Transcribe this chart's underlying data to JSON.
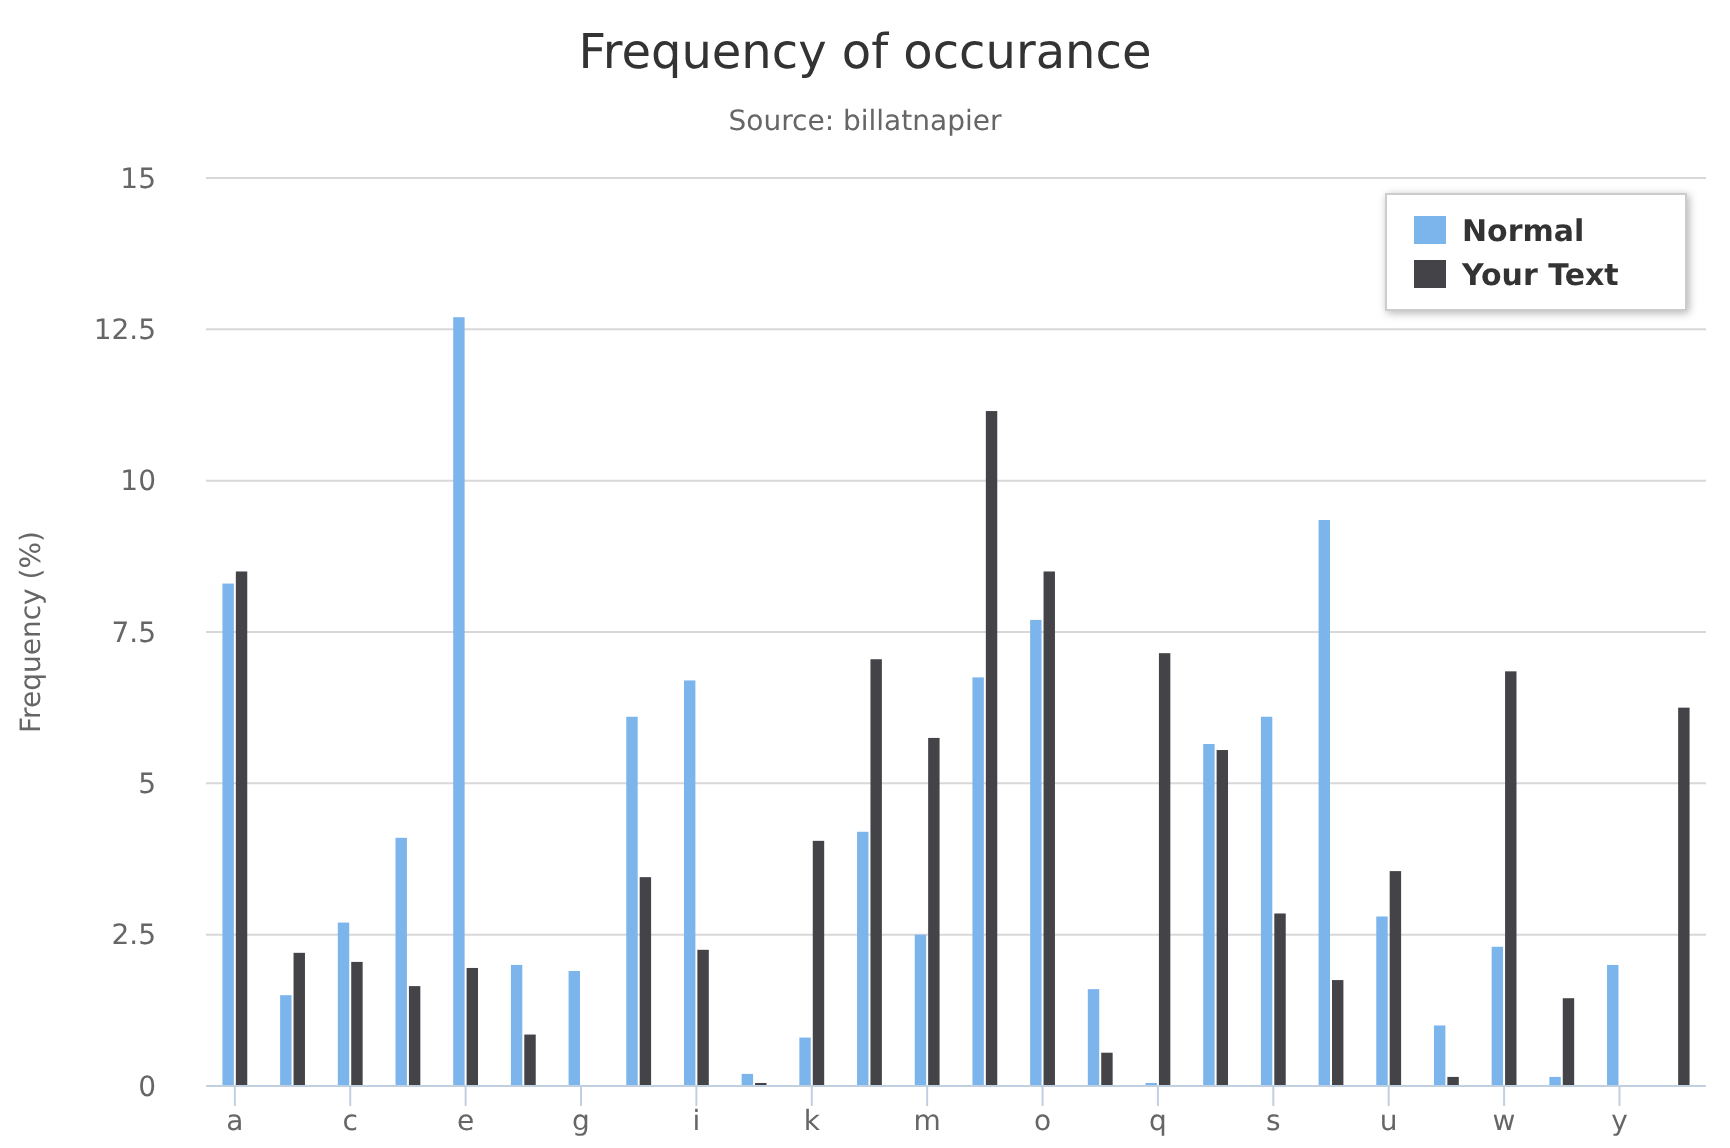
{
  "chart_data": {
    "type": "bar",
    "title": "Frequency of occurance",
    "subtitle": "Source: billatnapier",
    "ylabel": "Frequency (%)",
    "categories": [
      "a",
      null,
      "c",
      null,
      "e",
      null,
      "g",
      null,
      "i",
      null,
      "k",
      null,
      "m",
      null,
      "o",
      null,
      "q",
      null,
      "s",
      null,
      "u",
      null,
      "w",
      null,
      "y",
      null
    ],
    "series": [
      {
        "name": "Normal",
        "color": "#7cb5ec",
        "values": [
          8.3,
          1.5,
          2.7,
          4.1,
          12.7,
          2.0,
          1.9,
          6.1,
          6.7,
          0.2,
          0.8,
          4.2,
          2.5,
          6.75,
          7.7,
          1.6,
          0.05,
          5.65,
          6.1,
          9.35,
          2.8,
          1.0,
          2.3,
          0.15,
          2.0,
          0
        ]
      },
      {
        "name": "Your Text",
        "color": "#434348",
        "values": [
          8.5,
          2.2,
          2.05,
          1.65,
          1.95,
          0.85,
          0,
          3.45,
          2.25,
          0.05,
          4.05,
          7.05,
          5.75,
          11.15,
          8.5,
          0.55,
          7.15,
          5.55,
          2.85,
          1.75,
          3.55,
          0.15,
          6.85,
          1.45,
          0,
          6.25
        ]
      }
    ],
    "ylim": [
      0,
      15
    ],
    "yticks": [
      0,
      2.5,
      5,
      7.5,
      10,
      12.5,
      15
    ],
    "grid": "y",
    "legend": "top right"
  }
}
